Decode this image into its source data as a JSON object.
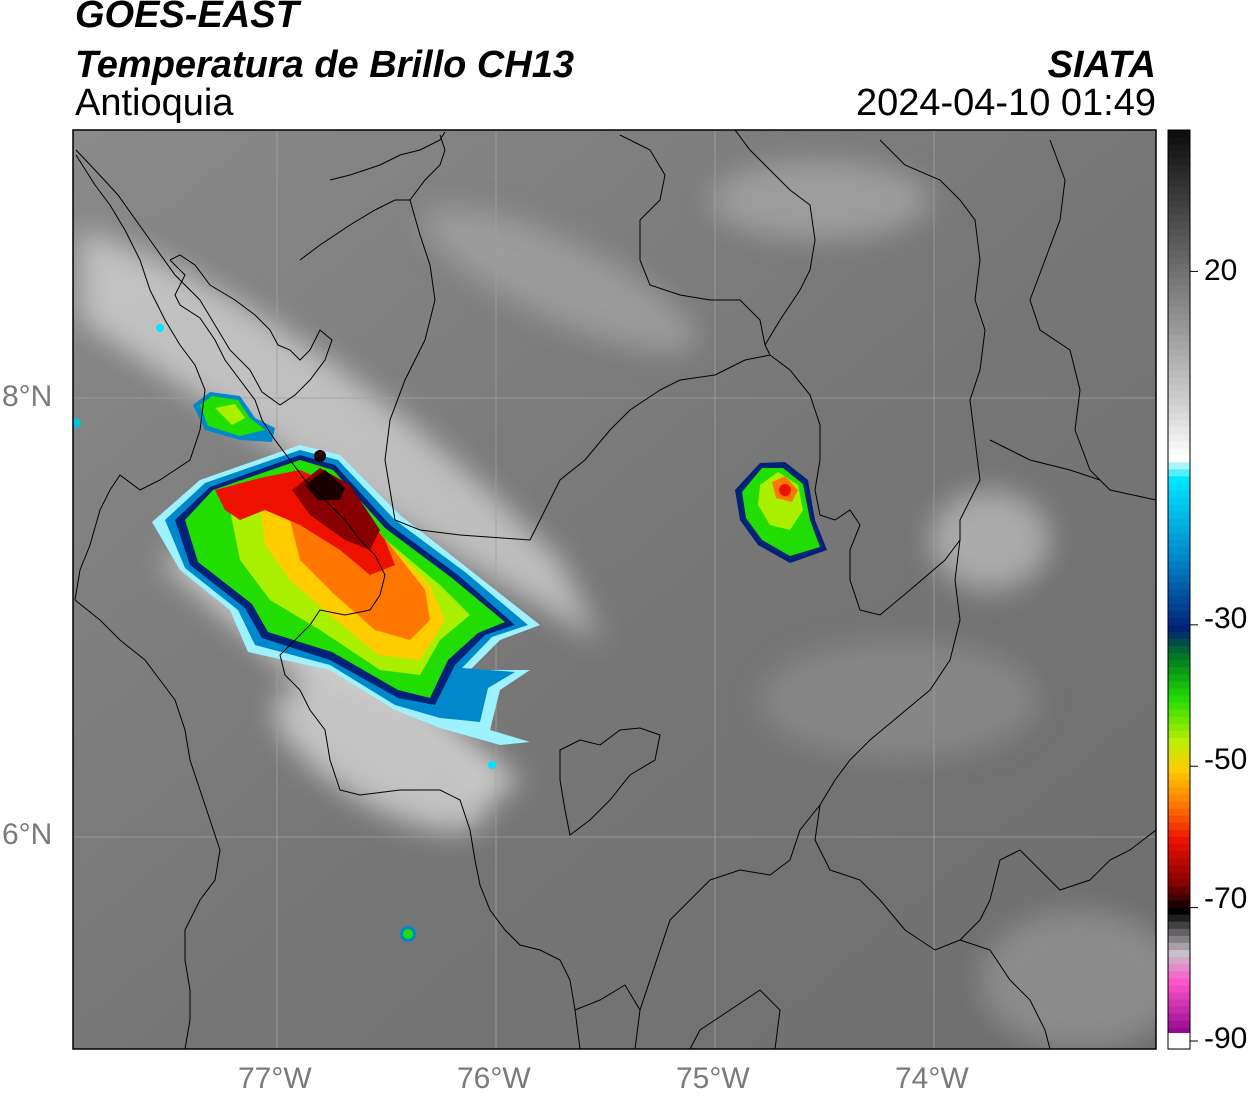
{
  "header": {
    "satellite": "GOES-EAST",
    "product": "Temperatura de Brillo CH13",
    "region": "Antioquia",
    "agency": "SIATA",
    "datetime": "2024-04-10 01:49"
  },
  "axes": {
    "latitude_labels": [
      "8°N",
      "6°N"
    ],
    "longitude_labels": [
      "77°W",
      "76°W",
      "75°W",
      "74°W"
    ]
  },
  "colorbar": {
    "unit": "",
    "tick_labels": [
      "20",
      "-30",
      "-50",
      "-70",
      "-90"
    ],
    "range": [
      -90,
      40
    ],
    "stops": [
      {
        "value": 40,
        "color": "#0e0e0e"
      },
      {
        "value": 28,
        "color": "#4a4a4a"
      },
      {
        "value": 15,
        "color": "#8c8c8c"
      },
      {
        "value": 2,
        "color": "#cfcfcf"
      },
      {
        "value": -6,
        "color": "#ffffff"
      },
      {
        "value": -9,
        "color": "#00e5ff"
      },
      {
        "value": -20,
        "color": "#0088cc"
      },
      {
        "value": -30,
        "color": "#002277"
      },
      {
        "value": -34,
        "color": "#007722"
      },
      {
        "value": -40,
        "color": "#22dd00"
      },
      {
        "value": -46,
        "color": "#bbee00"
      },
      {
        "value": -50,
        "color": "#ffcc00"
      },
      {
        "value": -55,
        "color": "#ff7700"
      },
      {
        "value": -60,
        "color": "#ee1100"
      },
      {
        "value": -66,
        "color": "#880000"
      },
      {
        "value": -70,
        "color": "#000000"
      },
      {
        "value": -76,
        "color": "#c8c0c8"
      },
      {
        "value": -80,
        "color": "#ff55cc"
      },
      {
        "value": -88,
        "color": "#880088"
      },
      {
        "value": -90,
        "color": "#ffffff"
      }
    ]
  },
  "colors": {
    "background_cloud_top": "#7a7a7a",
    "boundary_lines": "#000000",
    "graticule": "#a0a0a0"
  }
}
